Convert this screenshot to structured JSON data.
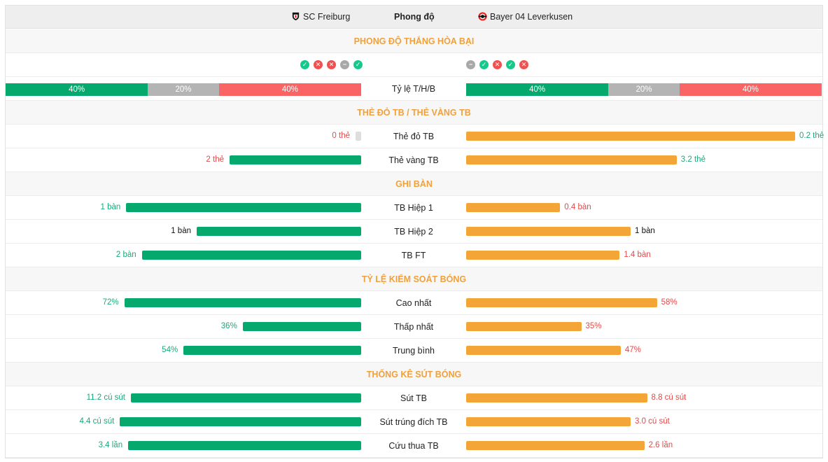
{
  "header": {
    "home_team": "SC Freiburg",
    "away_team": "Bayer 04 Leverkusen",
    "title": "Phong độ"
  },
  "sections": {
    "form": "PHONG ĐỘ THẮNG HÒA BẠI",
    "cards": "THẺ ĐỎ TB / THẺ VÀNG TB",
    "goals": "GHI BÀN",
    "possession": "TỶ LỆ KIỂM SOÁT BÓNG",
    "shots": "THỐNG KÊ SÚT BÓNG"
  },
  "form_icons": {
    "home": [
      "win",
      "loss",
      "loss",
      "draw",
      "win"
    ],
    "away": [
      "draw",
      "win",
      "loss",
      "win",
      "loss"
    ]
  },
  "ratio": {
    "label": "Tỷ lệ T/H/B",
    "home": {
      "win": 40,
      "draw": 20,
      "loss": 40,
      "win_label": "40%",
      "draw_label": "20%",
      "loss_label": "40%"
    },
    "away": {
      "win": 40,
      "draw": 20,
      "loss": 40,
      "win_label": "40%",
      "draw_label": "20%",
      "loss_label": "40%"
    }
  },
  "cards": {
    "red": {
      "label": "Thẻ đỏ TB",
      "home_value": 0,
      "away_value": 0.2,
      "home_text": "0 thẻ",
      "away_text": "0.2 thẻ"
    },
    "yellow": {
      "label": "Thẻ vàng TB",
      "home_value": 2,
      "away_value": 3.2,
      "home_text": "2 thẻ",
      "away_text": "3.2 thẻ"
    }
  },
  "goals": {
    "h1": {
      "label": "TB Hiệp 1",
      "home_value": 1,
      "away_value": 0.4,
      "home_text": "1 bàn",
      "away_text": "0.4 bàn"
    },
    "h2": {
      "label": "TB Hiệp 2",
      "home_value": 1,
      "away_value": 1,
      "home_text": "1 bàn",
      "away_text": "1 bàn"
    },
    "ft": {
      "label": "TB FT",
      "home_value": 2,
      "away_value": 1.4,
      "home_text": "2 bàn",
      "away_text": "1.4 bàn"
    }
  },
  "possession": {
    "max": {
      "label": "Cao nhất",
      "home_value": 72,
      "away_value": 58,
      "home_text": "72%",
      "away_text": "58%"
    },
    "min": {
      "label": "Thấp nhất",
      "home_value": 36,
      "away_value": 35,
      "home_text": "36%",
      "away_text": "35%"
    },
    "avg": {
      "label": "Trung bình",
      "home_value": 54,
      "away_value": 47,
      "home_text": "54%",
      "away_text": "47%"
    }
  },
  "shots": {
    "total": {
      "label": "Sút TB",
      "home_value": 11.2,
      "away_value": 8.8,
      "home_text": "11.2 cú sút",
      "away_text": "8.8 cú sút"
    },
    "on_target": {
      "label": "Sút trúng đích TB",
      "home_value": 4.4,
      "away_value": 3.0,
      "home_text": "4.4 cú sút",
      "away_text": "3.0 cú sút"
    },
    "saves": {
      "label": "Cứu thua TB",
      "home_value": 3.4,
      "away_value": 2.6,
      "home_text": "3.4 lần",
      "away_text": "2.6 lần"
    }
  },
  "colors": {
    "home_bar": "#06a96d",
    "away_bar": "#f3a537",
    "win": "#06a96d",
    "draw": "#b4b4b4",
    "loss": "#fa6464",
    "section_title": "#f0a03c"
  }
}
